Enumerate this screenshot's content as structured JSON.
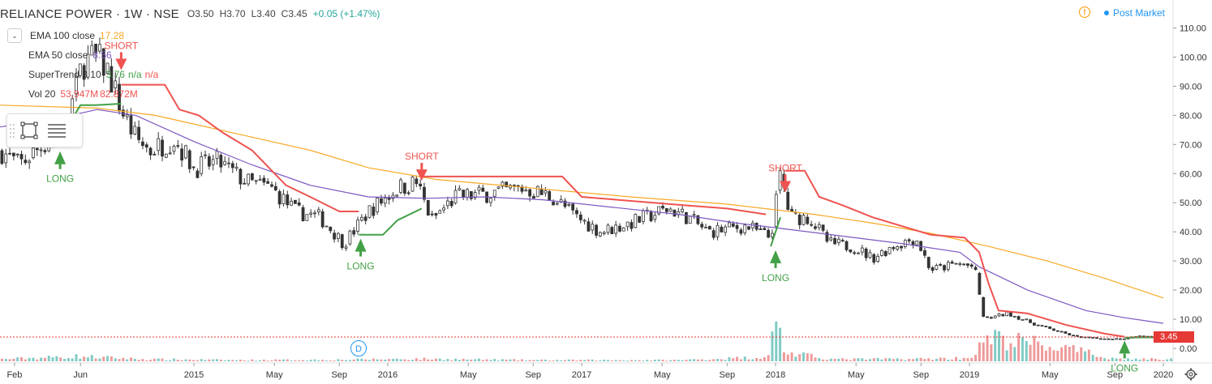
{
  "header": {
    "symbol": "RELIANCE POWER · 1W · NSE",
    "o_label": "O",
    "o": "3.50",
    "h_label": "H",
    "h": "3.70",
    "l_label": "L",
    "l": "3.40",
    "c_label": "C",
    "c": "3.45",
    "change": "+0.05 (+1.47%)",
    "market_status": "Post Market"
  },
  "indicators": [
    {
      "name": "EMA 100 close",
      "value": "17.28"
    },
    {
      "name": "EMA 50 close",
      "value": "8.56"
    },
    {
      "name": "SuperTrend 3 10",
      "value": "3.76",
      "value2": "n/a",
      "value3": "n/a"
    },
    {
      "name": "Vol 20",
      "value": "53.947M",
      "value2": "82.872M"
    }
  ],
  "colors": {
    "up": "#26a69a",
    "down": "#ef5350",
    "candle": "#333333",
    "ema100": "#f9a825",
    "ema50": "#7e57c2",
    "st_up": "#43a047",
    "st_down": "#ef5350",
    "vol_up": "#80cbc4",
    "vol_down": "#ef9a9a"
  },
  "icons": [
    "collapse-arrow-icon",
    "rectangle-tool-icon",
    "lines-tool-icon",
    "warning-icon",
    "settings-gear-icon"
  ],
  "last_price": "3.45",
  "dividend_marker": "D",
  "chart_data": {
    "type": "candlestick",
    "y_axis": {
      "min": -3,
      "max": 115,
      "ticks": [
        "110.00",
        "100.00",
        "90.00",
        "80.00",
        "70.00",
        "60.00",
        "50.00",
        "40.00",
        "30.00",
        "20.00",
        "10.00",
        "0.00"
      ],
      "tick_values": [
        110,
        100,
        90,
        80,
        70,
        60,
        50,
        40,
        30,
        20,
        10,
        0
      ]
    },
    "x_axis": {
      "ticks": [
        "Feb",
        "Jun",
        "2015",
        "May",
        "Sep",
        "2016",
        "May",
        "Sep",
        "2017",
        "May",
        "Sep",
        "2018",
        "May",
        "Sep",
        "2019",
        "May",
        "Sep",
        "2020"
      ],
      "tick_times": [
        0.15,
        0.83,
        2.0,
        2.83,
        3.5,
        4.0,
        4.83,
        5.5,
        6.0,
        6.83,
        7.5,
        8.0,
        8.83,
        9.5,
        10.0,
        10.83,
        11.5,
        12.0
      ]
    },
    "time_unit": "months from Jan 2014 /3",
    "x_min": 0.0,
    "x_max": 12.1,
    "ema100": [
      [
        0.0,
        83.5
      ],
      [
        1.0,
        82.5
      ],
      [
        1.6,
        80
      ],
      [
        2.4,
        74
      ],
      [
        3.2,
        68
      ],
      [
        3.8,
        62
      ],
      [
        4.5,
        58
      ],
      [
        5.5,
        55
      ],
      [
        6.5,
        52
      ],
      [
        7.5,
        49.5
      ],
      [
        8.4,
        46
      ],
      [
        9.0,
        43
      ],
      [
        9.6,
        39.5
      ],
      [
        10.2,
        35
      ],
      [
        10.8,
        30
      ],
      [
        11.4,
        24
      ],
      [
        12.0,
        17.3
      ]
    ],
    "ema50": [
      [
        0.0,
        76
      ],
      [
        0.6,
        79
      ],
      [
        1.0,
        82
      ],
      [
        1.4,
        80
      ],
      [
        2.0,
        71
      ],
      [
        2.6,
        63
      ],
      [
        3.2,
        56
      ],
      [
        3.8,
        52
      ],
      [
        4.4,
        51.5
      ],
      [
        5.0,
        52
      ],
      [
        5.6,
        51
      ],
      [
        6.3,
        48.5
      ],
      [
        7.0,
        46
      ],
      [
        7.6,
        43
      ],
      [
        8.1,
        41
      ],
      [
        8.7,
        38.5
      ],
      [
        9.3,
        36
      ],
      [
        9.9,
        33
      ],
      [
        10.1,
        28
      ],
      [
        10.6,
        20
      ],
      [
        11.2,
        13
      ],
      [
        11.6,
        10.5
      ],
      [
        12.0,
        8.6
      ]
    ],
    "supertrend": [
      {
        "dir": "up",
        "points": [
          [
            0.62,
            72
          ],
          [
            0.83,
            83.5
          ],
          [
            0.98,
            83.5
          ],
          [
            1.25,
            84
          ]
        ]
      },
      {
        "dir": "down",
        "points": [
          [
            1.25,
            90.5
          ],
          [
            1.5,
            90.5
          ],
          [
            1.7,
            90.5
          ],
          [
            1.85,
            82
          ],
          [
            2.05,
            80
          ],
          [
            2.3,
            74
          ],
          [
            2.6,
            68
          ],
          [
            2.95,
            56
          ],
          [
            3.2,
            52
          ],
          [
            3.5,
            47
          ],
          [
            3.7,
            47
          ]
        ]
      },
      {
        "dir": "up",
        "points": [
          [
            3.7,
            39
          ],
          [
            3.95,
            39
          ],
          [
            4.1,
            44
          ],
          [
            4.35,
            48
          ]
        ]
      },
      {
        "dir": "down",
        "points": [
          [
            4.35,
            59
          ],
          [
            5.8,
            59
          ],
          [
            6.0,
            52
          ],
          [
            7.1,
            49
          ],
          [
            7.5,
            48
          ],
          [
            7.9,
            46
          ]
        ]
      },
      {
        "dir": "up",
        "points": [
          [
            7.95,
            35
          ],
          [
            8.05,
            45
          ]
        ]
      },
      {
        "dir": "down",
        "points": [
          [
            8.1,
            61
          ],
          [
            8.3,
            61
          ],
          [
            8.45,
            52
          ],
          [
            8.7,
            49
          ],
          [
            9.0,
            45
          ],
          [
            9.6,
            39
          ],
          [
            9.95,
            38
          ],
          [
            10.1,
            33
          ],
          [
            10.2,
            22
          ],
          [
            10.3,
            13
          ],
          [
            10.6,
            12
          ],
          [
            11.0,
            8
          ],
          [
            11.4,
            5
          ],
          [
            11.6,
            4
          ]
        ]
      },
      {
        "dir": "up",
        "points": [
          [
            11.6,
            3.7
          ],
          [
            11.75,
            3.76
          ],
          [
            12.0,
            3.76
          ]
        ]
      }
    ],
    "signals": [
      {
        "type": "LONG",
        "t": 0.62,
        "price": 66
      },
      {
        "type": "SHORT",
        "t": 1.25,
        "price": 100
      },
      {
        "type": "LONG",
        "t": 3.72,
        "price": 36
      },
      {
        "type": "SHORT",
        "t": 4.35,
        "price": 62
      },
      {
        "type": "LONG",
        "t": 8.0,
        "price": 32
      },
      {
        "type": "SHORT",
        "t": 8.1,
        "price": 58
      },
      {
        "type": "LONG",
        "t": 11.6,
        "price": 1
      }
    ],
    "price_anchors": [
      [
        0.0,
        68
      ],
      [
        0.2,
        63
      ],
      [
        0.45,
        70
      ],
      [
        0.65,
        74
      ],
      [
        0.78,
        88
      ],
      [
        0.85,
        98
      ],
      [
        1.0,
        100
      ],
      [
        1.12,
        95
      ],
      [
        1.25,
        82
      ],
      [
        1.4,
        72
      ],
      [
        1.55,
        68
      ],
      [
        1.8,
        72
      ],
      [
        2.0,
        62
      ],
      [
        2.25,
        64
      ],
      [
        2.55,
        57
      ],
      [
        2.8,
        55
      ],
      [
        3.05,
        47
      ],
      [
        3.3,
        45
      ],
      [
        3.55,
        36
      ],
      [
        3.8,
        47
      ],
      [
        4.1,
        55
      ],
      [
        4.3,
        57
      ],
      [
        4.45,
        44
      ],
      [
        4.7,
        52
      ],
      [
        5.0,
        53
      ],
      [
        5.4,
        55
      ],
      [
        5.7,
        52
      ],
      [
        5.95,
        45
      ],
      [
        6.2,
        40
      ],
      [
        6.5,
        43
      ],
      [
        6.9,
        48
      ],
      [
        7.1,
        45
      ],
      [
        7.3,
        40
      ],
      [
        7.7,
        42
      ],
      [
        7.95,
        38
      ],
      [
        8.05,
        60
      ],
      [
        8.15,
        45
      ],
      [
        8.35,
        45
      ],
      [
        8.55,
        36
      ],
      [
        8.8,
        35
      ],
      [
        9.0,
        31
      ],
      [
        9.2,
        35
      ],
      [
        9.45,
        38
      ],
      [
        9.6,
        27
      ],
      [
        9.9,
        29
      ],
      [
        10.05,
        28
      ],
      [
        10.15,
        10
      ],
      [
        10.4,
        12
      ],
      [
        10.7,
        8
      ],
      [
        10.9,
        6
      ],
      [
        11.1,
        4
      ],
      [
        11.4,
        3.2
      ],
      [
        11.6,
        3.4
      ],
      [
        11.75,
        4.3
      ],
      [
        12.0,
        3.45
      ]
    ],
    "volume_anchors": [
      [
        0,
        0.05
      ],
      [
        0.8,
        0.12
      ],
      [
        1.5,
        0.05
      ],
      [
        2.5,
        0.03
      ],
      [
        3.5,
        0.04
      ],
      [
        4.3,
        0.06
      ],
      [
        5.5,
        0.03
      ],
      [
        7.0,
        0.03
      ],
      [
        7.9,
        0.1
      ],
      [
        8.02,
        0.9
      ],
      [
        8.1,
        0.2
      ],
      [
        8.6,
        0.05
      ],
      [
        9.5,
        0.06
      ],
      [
        10.0,
        0.08
      ],
      [
        10.2,
        0.55
      ],
      [
        10.6,
        0.45
      ],
      [
        11.0,
        0.3
      ],
      [
        11.5,
        0.06
      ],
      [
        12.0,
        0.05
      ]
    ]
  }
}
